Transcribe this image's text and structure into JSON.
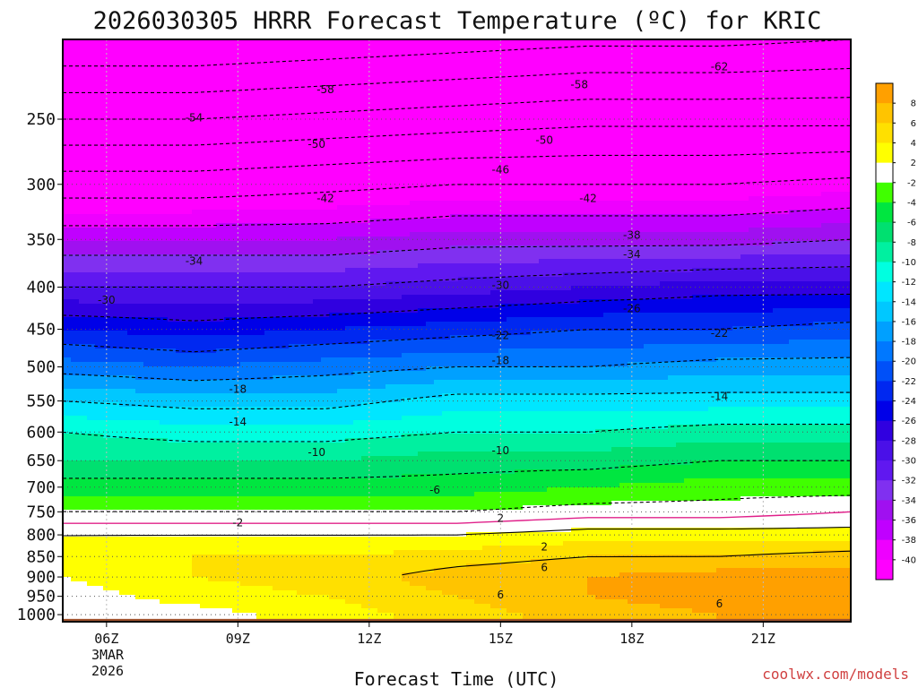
{
  "chart_data": {
    "type": "heatmap",
    "title": "2026030305 HRRR Forecast Temperature (ºC) for KRIC",
    "xlabel": "Forecast Time (UTC)",
    "ylabel": "",
    "x_ticks": [
      "06Z",
      "09Z",
      "12Z",
      "15Z",
      "18Z",
      "21Z"
    ],
    "x_first_tick_date": [
      "3MAR",
      "2026"
    ],
    "x_range_hours": [
      5,
      23
    ],
    "y_ticks": [
      250,
      300,
      350,
      400,
      450,
      500,
      550,
      600,
      650,
      700,
      750,
      800,
      850,
      900,
      950,
      1000
    ],
    "y_range_hPa": [
      1020,
      200
    ],
    "y_axis": "pressure (hPa), log scale, inverted",
    "grid": "dotted at each pressure tick and forecast hour tick",
    "colorbar_levels": [
      -40,
      -38,
      -36,
      -34,
      -32,
      -30,
      -28,
      -26,
      -24,
      -22,
      -20,
      -18,
      -16,
      -14,
      -12,
      -10,
      -8,
      -6,
      -4,
      -2,
      2,
      4,
      6,
      8
    ],
    "colorbar_labels": [
      "8",
      "6",
      "4",
      "2",
      "-2",
      "-4",
      "-6",
      "-8",
      "-10",
      "-12",
      "-14",
      "-16",
      "-18",
      "-20",
      "-22",
      "-24",
      "-26",
      "-28",
      "-30",
      "-32",
      "-34",
      "-36",
      "-38",
      "-40"
    ],
    "colors": {
      "below_-40": "#ff00ff",
      "-40_-38": "#ee00ff",
      "-38_-36": "#c000ff",
      "-36_-34": "#a010f0",
      "-34_-32": "#8030f0",
      "-32_-30": "#6018f0",
      "-30_-28": "#4a10e8",
      "-28_-26": "#3000e0",
      "-26_-24": "#0000e8",
      "-24_-22": "#0028f0",
      "-22_-20": "#0050f8",
      "-20_-18": "#0078ff",
      "-18_-16": "#00a0ff",
      "-16_-14": "#00c8ff",
      "-14_-12": "#00e6ff",
      "-12_-10": "#00ffe0",
      "-10_-8": "#00f0a0",
      "-8_-6": "#00e070",
      "-6_-4": "#00e640",
      "-4_-2": "#40ff00",
      "-2_2": "#ffffff",
      "2_4": "#ffff00",
      "4_6": "#ffe000",
      "6_8": "#ffc400",
      "above_8": "#ffa000",
      "ground": "#a0522d",
      "freezing_line": "#e0208a"
    },
    "isotherm_profiles": {
      "note": "approximate temperature (degC) at pressure levels (hPa), by forecast hour",
      "pressure_levels": [
        200,
        250,
        300,
        350,
        400,
        450,
        500,
        550,
        600,
        650,
        700,
        750,
        800,
        850,
        900,
        950,
        1000
      ],
      "hours": [
        5,
        8,
        11,
        14,
        17,
        20,
        23
      ],
      "temps": [
        [
          -66,
          -54,
          -44,
          -36,
          -30,
          -24,
          -19,
          -14,
          -10,
          -8,
          -5,
          -2,
          2,
          3,
          2,
          1,
          0
        ],
        [
          -66,
          -54,
          -44,
          -36,
          -30,
          -25,
          -20,
          -15,
          -11,
          -8,
          -5,
          -2,
          2,
          4,
          4,
          3,
          1
        ],
        [
          -65,
          -53,
          -43,
          -36,
          -30,
          -24,
          -19,
          -15,
          -11,
          -8,
          -5,
          -2,
          2,
          4,
          5,
          4,
          3
        ],
        [
          -64,
          -52,
          -42,
          -35,
          -29,
          -23,
          -18,
          -13,
          -10,
          -7,
          -5,
          -2,
          2,
          5,
          7,
          6,
          5
        ],
        [
          -63,
          -51,
          -42,
          -35,
          -28,
          -22,
          -18,
          -13,
          -10,
          -7,
          -4,
          -1,
          3,
          6,
          8,
          8,
          7
        ],
        [
          -63,
          -51,
          -42,
          -35,
          -27,
          -22,
          -17,
          -13,
          -9,
          -6,
          -3,
          -1,
          3,
          6,
          9,
          9,
          8
        ],
        [
          -62,
          -51,
          -41,
          -34,
          -27,
          -21,
          -17,
          -13,
          -9,
          -6,
          -3,
          0,
          3,
          7,
          9,
          10,
          9
        ]
      ]
    },
    "contour_labels": [
      {
        "text": "-62",
        "hour": 20.0,
        "hPa": 216
      },
      {
        "text": "-58",
        "hour": 11.0,
        "hPa": 230
      },
      {
        "text": "-58",
        "hour": 16.8,
        "hPa": 227
      },
      {
        "text": "-54",
        "hour": 8.0,
        "hPa": 249
      },
      {
        "text": "-50",
        "hour": 10.8,
        "hPa": 268
      },
      {
        "text": "-50",
        "hour": 16.0,
        "hPa": 265
      },
      {
        "text": "-46",
        "hour": 15.0,
        "hPa": 288
      },
      {
        "text": "-42",
        "hour": 11.0,
        "hPa": 312
      },
      {
        "text": "-42",
        "hour": 17.0,
        "hPa": 312
      },
      {
        "text": "-38",
        "hour": 18.0,
        "hPa": 346
      },
      {
        "text": "-34",
        "hour": 8.0,
        "hPa": 372
      },
      {
        "text": "-34",
        "hour": 18.0,
        "hPa": 365
      },
      {
        "text": "-30",
        "hour": 6.0,
        "hPa": 415
      },
      {
        "text": "-30",
        "hour": 15.0,
        "hPa": 398
      },
      {
        "text": "-26",
        "hour": 18.0,
        "hPa": 425
      },
      {
        "text": "-22",
        "hour": 15.0,
        "hPa": 458
      },
      {
        "text": "-22",
        "hour": 20.0,
        "hPa": 455
      },
      {
        "text": "-18",
        "hour": 9.0,
        "hPa": 532
      },
      {
        "text": "-18",
        "hour": 15.0,
        "hPa": 491
      },
      {
        "text": "-14",
        "hour": 9.0,
        "hPa": 583
      },
      {
        "text": "-14",
        "hour": 20.0,
        "hPa": 543
      },
      {
        "text": "-10",
        "hour": 10.8,
        "hPa": 635
      },
      {
        "text": "-10",
        "hour": 15.0,
        "hPa": 632
      },
      {
        "text": "-6",
        "hour": 13.5,
        "hPa": 706
      },
      {
        "text": "-2",
        "hour": 9.0,
        "hPa": 773
      },
      {
        "text": "2",
        "hour": 15.0,
        "hPa": 764
      },
      {
        "text": "2",
        "hour": 16.0,
        "hPa": 827
      },
      {
        "text": "6",
        "hour": 16.0,
        "hPa": 877
      },
      {
        "text": "6",
        "hour": 15.0,
        "hPa": 946
      },
      {
        "text": "6",
        "hour": 20.0,
        "hPa": 970
      }
    ]
  },
  "credit": "coolwx.com/models"
}
